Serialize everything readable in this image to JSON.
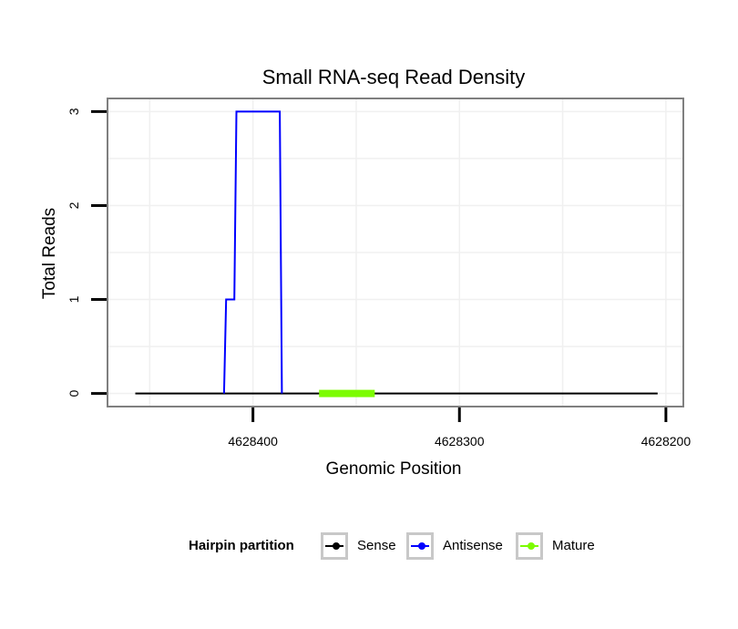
{
  "chart_data": {
    "type": "line",
    "title": "Small RNA-seq Read Density",
    "xlabel": "Genomic Position",
    "ylabel": "Total Reads",
    "x_reversed": true,
    "xlim": [
      4628470,
      4628192
    ],
    "ylim": [
      -0.13,
      3.13
    ],
    "x_ticks": [
      4628400,
      4628300,
      4628200
    ],
    "x_tick_labels": [
      "4628400",
      "4628300",
      "4628200"
    ],
    "y_ticks": [
      0,
      1,
      2,
      3
    ],
    "y_tick_labels": [
      "0",
      "1",
      "2",
      "3"
    ],
    "grid": true,
    "legend_position": "bottom",
    "legend_title": "Hairpin partition",
    "series": [
      {
        "name": "Sense",
        "color": "#000000",
        "x": [
          4628457,
          4628204
        ],
        "y": [
          0,
          0
        ]
      },
      {
        "name": "Antisense",
        "color": "#0000ff",
        "x": [
          4628414,
          4628413,
          4628409,
          4628408,
          4628387,
          4628386
        ],
        "y": [
          0,
          1,
          1,
          3,
          3,
          0
        ]
      },
      {
        "name": "Mature",
        "color": "#7cfc00",
        "x": [
          4628368,
          4628341
        ],
        "y": [
          0,
          0
        ]
      }
    ]
  }
}
